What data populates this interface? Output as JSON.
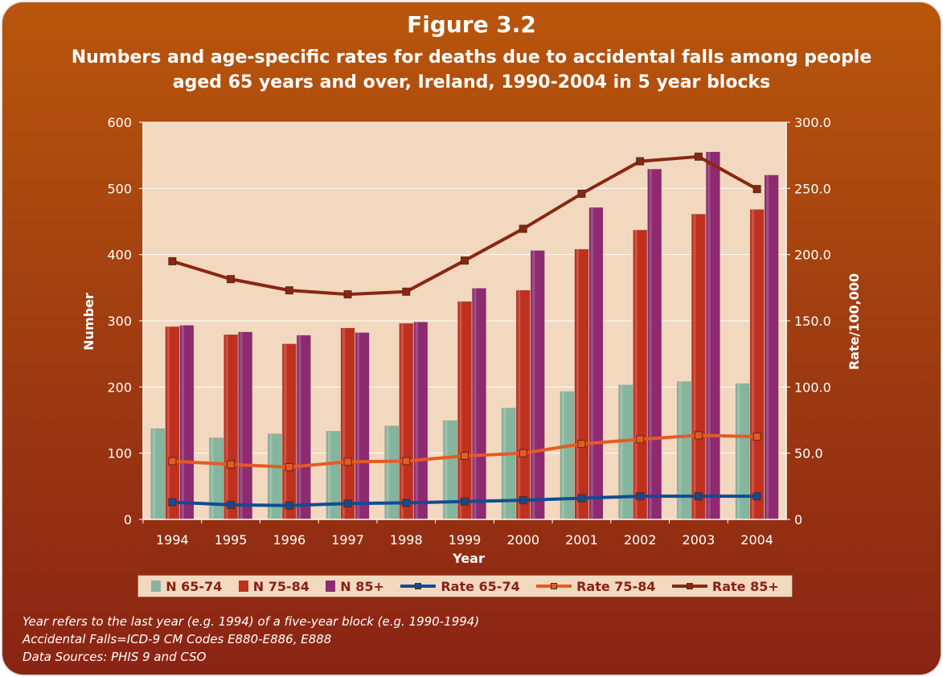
{
  "figure": {
    "label": "Figure 3.2",
    "title": "Numbers and age-specific rates for deaths due to accidental falls among people aged 65 years and over, Ireland, 1990-2004 in 5 year blocks"
  },
  "notes": [
    "Year refers to the last year (e.g. 1994) of a five-year block (e.g. 1990-1994)",
    "Accidental Falls=ICD-9 CM Codes E880-E886, E888",
    "Data Sources: PHIS 9 and CSO"
  ],
  "chart_data": {
    "type": "bar",
    "title": "Numbers and age-specific rates for deaths due to accidental falls among people aged 65 years and over, Ireland, 1990-2004 in 5 year blocks",
    "xlabel": "Year",
    "ylabel": "Number",
    "y2label": "Rate/100,000",
    "ylim": [
      0,
      600
    ],
    "y2lim": [
      0,
      300
    ],
    "yticks": [
      "0",
      "100",
      "200",
      "300",
      "400",
      "500",
      "600"
    ],
    "y2ticks": [
      "0",
      "50.0",
      "100.0",
      "150.0",
      "200.0",
      "250.0",
      "300.0"
    ],
    "grid": true,
    "legend_position": "bottom",
    "plot_background": "#f1d8bf",
    "categories": [
      "1994",
      "1995",
      "1996",
      "1997",
      "1998",
      "1999",
      "2000",
      "2001",
      "2002",
      "2003",
      "2004"
    ],
    "series": [
      {
        "name": "N 65-74",
        "kind": "bar",
        "axis": "left",
        "color": "#86b59d",
        "values": [
          137,
          123,
          129,
          133,
          141,
          149,
          168,
          193,
          203,
          208,
          205
        ]
      },
      {
        "name": "N 75-84",
        "kind": "bar",
        "axis": "left",
        "color": "#c0301e",
        "values": [
          291,
          279,
          265,
          289,
          296,
          329,
          346,
          408,
          437,
          461,
          468
        ]
      },
      {
        "name": "N 85+",
        "kind": "bar",
        "axis": "left",
        "color": "#8d2a70",
        "values": [
          293,
          283,
          278,
          282,
          298,
          349,
          406,
          471,
          529,
          555,
          520
        ]
      },
      {
        "name": "Rate 65-74",
        "kind": "line",
        "axis": "right",
        "color": "#124b94",
        "values": [
          13,
          11,
          10.5,
          12,
          12.5,
          13.5,
          14.5,
          16,
          17.5,
          17.5,
          17.5
        ]
      },
      {
        "name": "Rate 75-84",
        "kind": "line",
        "axis": "right",
        "color": "#e65a24",
        "values": [
          44,
          41.5,
          39.5,
          43.5,
          44,
          48,
          50,
          57,
          60.5,
          63.5,
          62.5
        ]
      },
      {
        "name": "Rate 85+",
        "kind": "line",
        "axis": "right",
        "color": "#8a2612",
        "values": [
          195,
          181.5,
          173,
          170,
          172,
          195.5,
          219.5,
          246,
          270.5,
          274,
          249.5
        ]
      }
    ]
  }
}
